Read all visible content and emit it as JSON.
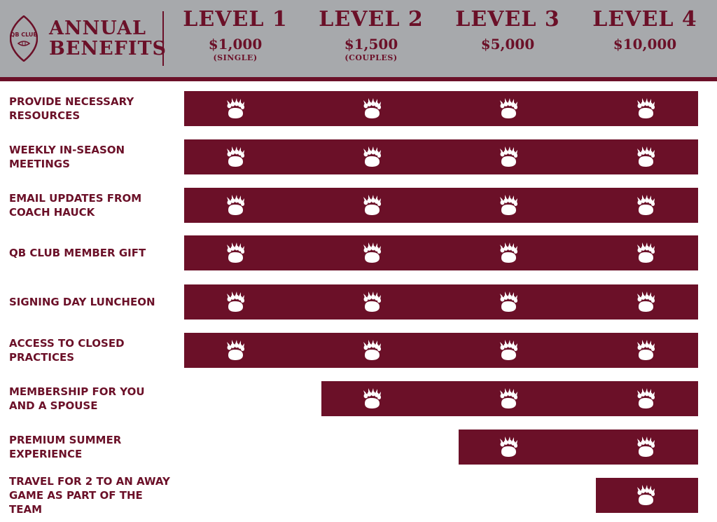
{
  "header": {
    "logo_text": "QB CLUB",
    "title_line1": "ANNUAL",
    "title_line2": "BENEFITS",
    "levels": [
      {
        "name": "LEVEL 1",
        "price": "$1,000",
        "note": "(SINGLE)"
      },
      {
        "name": "LEVEL 2",
        "price": "$1,500",
        "note": "(COUPLES)"
      },
      {
        "name": "LEVEL 3",
        "price": "$5,000",
        "note": ""
      },
      {
        "name": "LEVEL 4",
        "price": "$10,000",
        "note": ""
      }
    ]
  },
  "colors": {
    "accent": "#6b1028",
    "header_bg": "#a7a9ac",
    "text": "#6b1028"
  },
  "icon": "bear-paw-icon",
  "benefits": [
    {
      "label_lines": [
        "PROVIDE NECESSARY",
        "RESOURCES"
      ],
      "levels_included": [
        1,
        2,
        3,
        4
      ]
    },
    {
      "label_lines": [
        "WEEKLY IN-SEASON",
        "MEETINGS"
      ],
      "levels_included": [
        1,
        2,
        3,
        4
      ]
    },
    {
      "label_lines": [
        "EMAIL UPDATES FROM",
        "COACH HAUCK"
      ],
      "levels_included": [
        1,
        2,
        3,
        4
      ]
    },
    {
      "label_lines": [
        "QB CLUB MEMBER GIFT"
      ],
      "levels_included": [
        1,
        2,
        3,
        4
      ]
    },
    {
      "label_lines": [
        "SIGNING DAY LUNCHEON"
      ],
      "levels_included": [
        1,
        2,
        3,
        4
      ]
    },
    {
      "label_lines": [
        "ACCESS TO CLOSED",
        "PRACTICES"
      ],
      "levels_included": [
        1,
        2,
        3,
        4
      ]
    },
    {
      "label_lines": [
        "MEMBERSHIP FOR YOU",
        "AND A SPOUSE"
      ],
      "levels_included": [
        2,
        3,
        4
      ]
    },
    {
      "label_lines": [
        "PREMIUM SUMMER",
        "EXPERIENCE"
      ],
      "levels_included": [
        3,
        4
      ]
    },
    {
      "label_lines": [
        "TRAVEL FOR 2 TO AN AWAY",
        "GAME AS PART OF THE TEAM"
      ],
      "levels_included": [
        4
      ]
    }
  ]
}
